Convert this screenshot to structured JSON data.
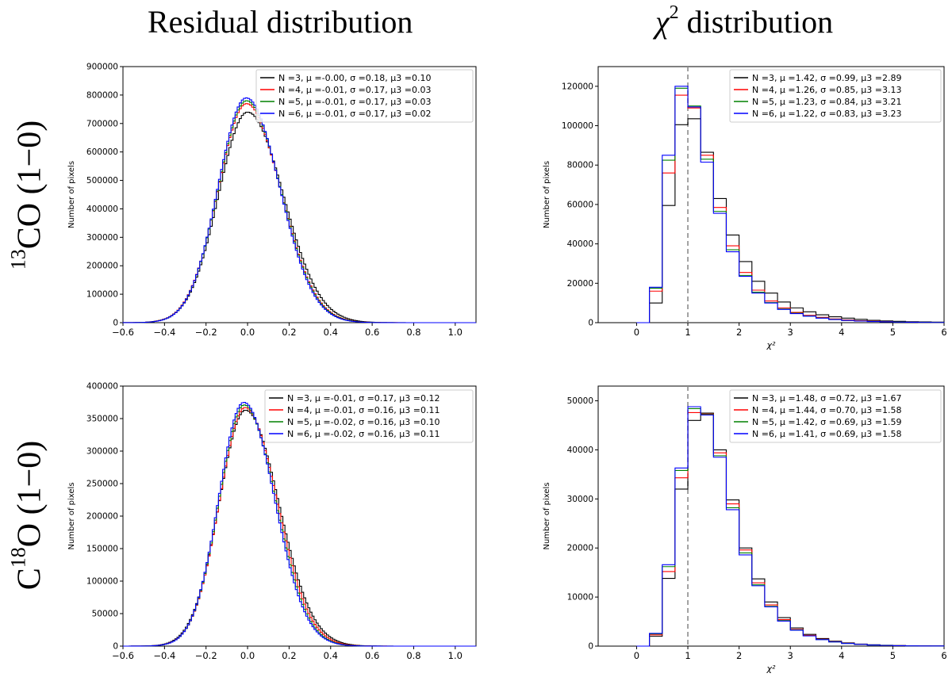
{
  "column_titles": {
    "left": "Residual distribution",
    "right_symbol": "χ",
    "right_exp": "2",
    "right_rest": " distribution"
  },
  "row_labels": {
    "top": {
      "pre": "",
      "sup": "13",
      "post": "CO (1−0)"
    },
    "bottom": {
      "pre": "C",
      "sup": "18",
      "post": "O (1−0)"
    }
  },
  "colors": {
    "N3": "#000000",
    "N4": "#ff0000",
    "N5": "#008000",
    "N6": "#0000ff",
    "refline": "#8c8c8c"
  },
  "chart_data": [
    {
      "id": "residual_13co",
      "type": "histogram-step",
      "xlabel": "",
      "ylabel": "Number of pixels",
      "xlim": [
        -0.6,
        1.1
      ],
      "ylim": [
        0,
        900000
      ],
      "xticks": [
        -0.6,
        -0.4,
        -0.2,
        0.0,
        0.2,
        0.4,
        0.6,
        0.8,
        1.0
      ],
      "xtick_labels": [
        "−0.6",
        "−0.4",
        "−0.2",
        "0.0",
        "0.2",
        "0.4",
        "0.6",
        "0.8",
        "1.0"
      ],
      "yticks": [
        0,
        100000,
        200000,
        300000,
        400000,
        500000,
        600000,
        700000,
        800000,
        900000
      ],
      "ytick_labels": [
        "0",
        "100000",
        "200000",
        "300000",
        "400000",
        "500000",
        "600000",
        "700000",
        "800000",
        "900000"
      ],
      "bin_width": 0.01,
      "series": [
        {
          "name": "N =3,  μ =-0.00,  σ =0.18,  μ3 =0.10",
          "color": "#000000",
          "model": {
            "kind": "skewgauss",
            "peak": 740000,
            "mu": 0.0,
            "sl": 0.14,
            "sr": 0.172
          }
        },
        {
          "name": "N =4,  μ =-0.01,  σ =0.17,  μ3 =0.03",
          "color": "#ff0000",
          "model": {
            "kind": "skewgauss",
            "peak": 770000,
            "mu": -0.005,
            "sl": 0.138,
            "sr": 0.164
          }
        },
        {
          "name": "N =5,  μ =-0.01,  σ =0.17,  μ3 =0.03",
          "color": "#008000",
          "model": {
            "kind": "skewgauss",
            "peak": 780000,
            "mu": -0.005,
            "sl": 0.137,
            "sr": 0.162
          }
        },
        {
          "name": "N =6,  μ =-0.01,  σ =0.17,  μ3 =0.02",
          "color": "#0000ff",
          "model": {
            "kind": "skewgauss",
            "peak": 790000,
            "mu": -0.006,
            "sl": 0.136,
            "sr": 0.16
          }
        }
      ],
      "legend_location": "upper right"
    },
    {
      "id": "chi2_13co",
      "type": "histogram-step",
      "xlabel": "χ²",
      "ylabel": "Number of pixels",
      "xlim": [
        -0.75,
        6
      ],
      "ylim": [
        0,
        130000
      ],
      "xticks": [
        0,
        1,
        2,
        3,
        4,
        5,
        6
      ],
      "xtick_labels": [
        "0",
        "1",
        "2",
        "3",
        "4",
        "5",
        "6"
      ],
      "yticks": [
        0,
        20000,
        40000,
        60000,
        80000,
        100000,
        120000
      ],
      "ytick_labels": [
        "0",
        "20000",
        "40000",
        "60000",
        "80000",
        "100000",
        "120000"
      ],
      "vline_x": 1,
      "bin_width": 0.25,
      "bin_start": 0,
      "series": [
        {
          "name": "N =3,  μ =1.42,  σ =0.99,  μ3 =2.89",
          "color": "#000000",
          "values": [
            0,
            10000,
            59500,
            100500,
            103500,
            86500,
            63000,
            44500,
            31000,
            21000,
            15000,
            10500,
            7500,
            5500,
            4000,
            3000,
            2300,
            1700,
            1200,
            900,
            700,
            500,
            400,
            300
          ]
        },
        {
          "name": "N =4,  μ =1.26,  σ =0.85,  μ3 =3.13",
          "color": "#ff0000",
          "values": [
            0,
            16000,
            76000,
            115500,
            109000,
            85000,
            58500,
            39000,
            25500,
            16500,
            11000,
            7500,
            5200,
            3700,
            2700,
            1900,
            1400,
            1000,
            700,
            500,
            350,
            250,
            180,
            120
          ]
        },
        {
          "name": "N =5,  μ =1.23,  σ =0.84,  μ3 =3.21",
          "color": "#008000",
          "values": [
            0,
            17500,
            82500,
            119000,
            110000,
            83000,
            56500,
            37000,
            24000,
            15500,
            10200,
            6900,
            4800,
            3400,
            2400,
            1700,
            1200,
            850,
            600,
            450,
            320,
            230,
            160,
            110
          ]
        },
        {
          "name": "N =6,  μ =1.22,  σ =0.83,  μ3 =3.23",
          "color": "#0000ff",
          "values": [
            0,
            18000,
            85000,
            120000,
            109500,
            81500,
            55500,
            36000,
            23500,
            15000,
            10000,
            6700,
            4600,
            3300,
            2300,
            1600,
            1150,
            800,
            580,
            420,
            300,
            210,
            150,
            100
          ]
        }
      ],
      "legend_location": "upper right"
    },
    {
      "id": "residual_c18o",
      "type": "histogram-step",
      "xlabel": "",
      "ylabel": "Number of pixels",
      "xlim": [
        -0.6,
        1.1
      ],
      "ylim": [
        0,
        400000
      ],
      "xticks": [
        -0.6,
        -0.4,
        -0.2,
        0.0,
        0.2,
        0.4,
        0.6,
        0.8,
        1.0
      ],
      "xtick_labels": [
        "−0.6",
        "−0.4",
        "−0.2",
        "0.0",
        "0.2",
        "0.4",
        "0.6",
        "0.8",
        "1.0"
      ],
      "yticks": [
        0,
        50000,
        100000,
        150000,
        200000,
        250000,
        300000,
        350000,
        400000
      ],
      "ytick_labels": [
        "0",
        "50000",
        "100000",
        "150000",
        "200000",
        "250000",
        "300000",
        "350000",
        "400000"
      ],
      "bin_width": 0.01,
      "series": [
        {
          "name": "N =3,  μ =-0.01,  σ =0.17,  μ3 =0.12",
          "color": "#000000",
          "model": {
            "kind": "skewgauss",
            "peak": 363000,
            "mu": -0.01,
            "sl": 0.127,
            "sr": 0.16
          }
        },
        {
          "name": "N =4,  μ =-0.01,  σ =0.16,  μ3 =0.11",
          "color": "#ff0000",
          "model": {
            "kind": "skewgauss",
            "peak": 367000,
            "mu": -0.012,
            "sl": 0.124,
            "sr": 0.154
          }
        },
        {
          "name": "N =5,  μ =-0.02,  σ =0.16,  μ3 =0.10",
          "color": "#008000",
          "model": {
            "kind": "skewgauss",
            "peak": 371000,
            "mu": -0.016,
            "sl": 0.122,
            "sr": 0.15
          }
        },
        {
          "name": "N =6,  μ =-0.02,  σ =0.16,  μ3 =0.11",
          "color": "#0000ff",
          "model": {
            "kind": "skewgauss",
            "peak": 375000,
            "mu": -0.018,
            "sl": 0.121,
            "sr": 0.148
          }
        }
      ],
      "legend_location": "upper right"
    },
    {
      "id": "chi2_c18o",
      "type": "histogram-step",
      "xlabel": "χ²",
      "ylabel": "Number of pixels",
      "xlim": [
        -0.75,
        6
      ],
      "ylim": [
        0,
        53000
      ],
      "xticks": [
        0,
        1,
        2,
        3,
        4,
        5,
        6
      ],
      "xtick_labels": [
        "0",
        "1",
        "2",
        "3",
        "4",
        "5",
        "6"
      ],
      "yticks": [
        0,
        10000,
        20000,
        30000,
        40000,
        50000
      ],
      "ytick_labels": [
        "0",
        "10000",
        "20000",
        "30000",
        "40000",
        "50000"
      ],
      "vline_x": 1,
      "bin_width": 0.25,
      "bin_start": 0,
      "series": [
        {
          "name": "N =3,  μ =1.48,  σ =0.72,  μ3 =1.67",
          "color": "#000000",
          "values": [
            0,
            2000,
            13800,
            32000,
            46000,
            47500,
            40000,
            29800,
            20000,
            13700,
            9000,
            5800,
            3700,
            2400,
            1550,
            1000,
            650,
            420,
            270,
            170,
            110,
            70,
            45,
            30
          ]
        },
        {
          "name": "N =4,  μ =1.44,  σ =0.70,  μ3 =1.58",
          "color": "#ff0000",
          "values": [
            0,
            2300,
            15200,
            34300,
            47600,
            47300,
            39400,
            29000,
            19600,
            12900,
            8400,
            5400,
            3400,
            2200,
            1400,
            900,
            580,
            370,
            240,
            150,
            95,
            60,
            40,
            25
          ]
        },
        {
          "name": "N =5,  μ =1.42,  σ =0.69,  μ3 =1.59",
          "color": "#008000",
          "values": [
            0,
            2500,
            16200,
            35800,
            48400,
            47200,
            38800,
            28200,
            19000,
            12500,
            8100,
            5200,
            3300,
            2100,
            1350,
            860,
            550,
            350,
            225,
            145,
            90,
            58,
            38,
            24
          ]
        },
        {
          "name": "N =6,  μ =1.41,  σ =0.69,  μ3 =1.58",
          "color": "#0000ff",
          "values": [
            0,
            2600,
            16600,
            36300,
            48800,
            47100,
            38500,
            27800,
            18600,
            12300,
            8000,
            5100,
            3250,
            2080,
            1330,
            850,
            540,
            345,
            220,
            140,
            88,
            56,
            36,
            23
          ]
        }
      ],
      "legend_location": "upper right"
    }
  ]
}
